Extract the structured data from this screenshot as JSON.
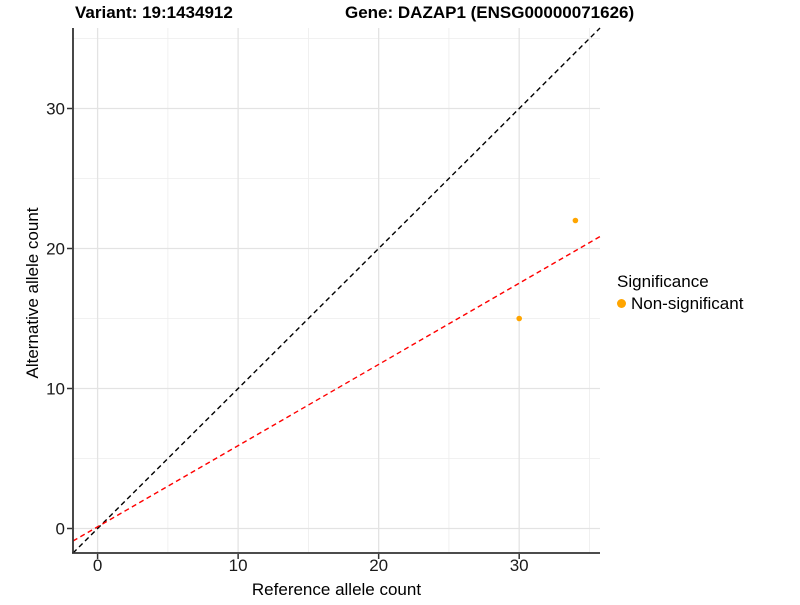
{
  "titles": {
    "variant": "Variant: 19:1434912",
    "gene": "Gene: DAZAP1 (ENSG00000071626)"
  },
  "chart_data": {
    "type": "scatter",
    "xlabel": "Reference allele count",
    "ylabel": "Alternative allele count",
    "xlim": [
      -1.75,
      35.75
    ],
    "ylim": [
      -1.75,
      35.75
    ],
    "x_major_ticks": [
      0,
      10,
      20,
      30
    ],
    "y_major_ticks": [
      0,
      10,
      20,
      30
    ],
    "x_minor_ticks": [
      5,
      15,
      25,
      35
    ],
    "y_minor_ticks": [
      5,
      15,
      25,
      35
    ],
    "grid": true,
    "points": [
      {
        "x": 30,
        "y": 15,
        "significance": "Non-significant"
      },
      {
        "x": 34,
        "y": 22,
        "significance": "Non-significant"
      }
    ],
    "point_color": "#FFA500",
    "lines": [
      {
        "name": "identity-line",
        "slope": 1,
        "intercept": 0,
        "color": "#000000",
        "style": "dashed"
      },
      {
        "name": "regression-line",
        "slope": 0.58,
        "intercept": 0.12,
        "color": "#FF0000",
        "style": "dashed"
      }
    ],
    "legend": {
      "title": "Significance",
      "position": "right",
      "items": [
        {
          "label": "Non-significant",
          "color": "#FFA500"
        }
      ]
    },
    "colors": {
      "grid_major": "#E3E3E3",
      "grid_minor": "#EDEDED",
      "axis_line": "#333333",
      "tick_text": "#1a1a1a"
    }
  }
}
